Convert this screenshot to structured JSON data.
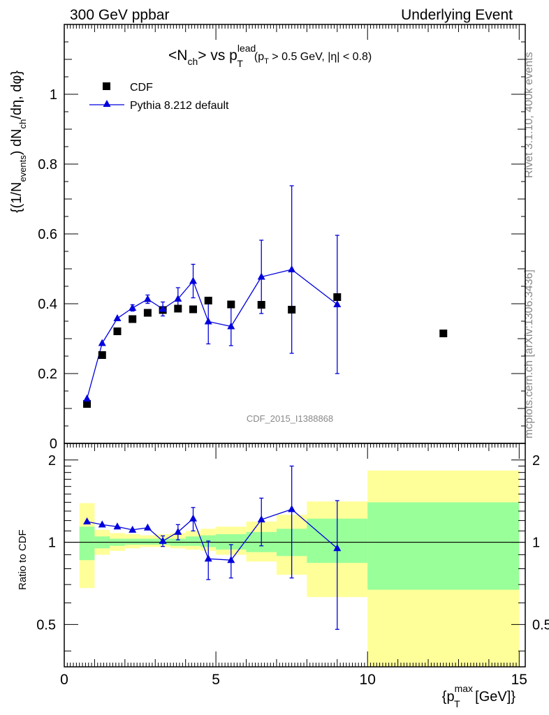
{
  "header": {
    "left": "300 GeV ppbar",
    "right": "Underlying Event"
  },
  "side_labels": {
    "rivet": "Rivet 3.1.10,  400k events",
    "mcplots": "mcplots.cern.ch [arXiv:1306.3436]"
  },
  "watermark": "CDF_2015_I1388868",
  "chart_data": [
    {
      "type": "scatter",
      "title": {
        "main": "<N",
        "main_sub": "ch",
        "mid": "> vs p",
        "mid_sup": "lead",
        "mid_sub": "T",
        "cut_p": "(p",
        "cut_sub": "T",
        "cut_rest": " > 0.5 GeV, |",
        "cut_eta": "η",
        "cut_end": "| < 0.8)"
      },
      "ylabel": {
        "a": "{(1/N",
        "a_sub": "events",
        "b": ") dN",
        "b_sub": "ch",
        "c": "/dη, dφ}"
      },
      "xlim": [
        0,
        15.2
      ],
      "ylim": [
        0,
        1.2
      ],
      "yticks": [
        0,
        0.2,
        0.4,
        0.6,
        0.8,
        1
      ],
      "ytick_labels": [
        "0",
        "0.2",
        "0.4",
        "0.6",
        "0.8",
        "1"
      ],
      "legend": {
        "position": "top-left",
        "entries": [
          "CDF",
          "Pythia 8.212 default"
        ]
      },
      "series": [
        {
          "name": "CDF",
          "color": "#000000",
          "marker": "square",
          "x": [
            0.75,
            1.25,
            1.75,
            2.25,
            2.75,
            3.25,
            3.75,
            4.25,
            4.75,
            5.5,
            6.5,
            7.5,
            9.0,
            12.5
          ],
          "y": [
            0.113,
            0.253,
            0.321,
            0.356,
            0.374,
            0.382,
            0.386,
            0.384,
            0.409,
            0.398,
            0.397,
            0.383,
            0.419,
            0.315
          ]
        },
        {
          "name": "Pythia 8.212 default",
          "color": "#0000dd",
          "marker": "triangle",
          "x": [
            0.75,
            1.25,
            1.75,
            2.25,
            2.75,
            3.25,
            3.75,
            4.25,
            4.75,
            5.5,
            6.5,
            7.5,
            9.0
          ],
          "y": [
            0.128,
            0.287,
            0.358,
            0.388,
            0.413,
            0.385,
            0.414,
            0.465,
            0.349,
            0.335,
            0.477,
            0.498,
            0.398
          ],
          "yerr": [
            0.004,
            0.006,
            0.008,
            0.009,
            0.012,
            0.02,
            0.032,
            0.048,
            0.064,
            0.055,
            0.105,
            0.24,
            0.198
          ]
        }
      ]
    },
    {
      "type": "scatter",
      "ylabel": "Ratio to CDF",
      "xlabel": {
        "a": "{p",
        "sup": "max",
        "sub": "T",
        "b": " [GeV]}"
      },
      "xlim": [
        0,
        15.2
      ],
      "ylim": [
        0.35,
        2.3
      ],
      "yscale": "log",
      "xticks": [
        0,
        5,
        10,
        15
      ],
      "xtick_labels": [
        "0",
        "5",
        "10",
        "15"
      ],
      "yticks": [
        0.5,
        1,
        2
      ],
      "ytick_labels": [
        "0.5",
        "1",
        "2"
      ],
      "reference_line": 1,
      "bands": {
        "x_edges": [
          0.5,
          1.0,
          1.5,
          2.0,
          2.5,
          3.0,
          3.5,
          4.0,
          4.5,
          5.0,
          6.0,
          7.0,
          8.0,
          10.0,
          15.0
        ],
        "outer_color": "#ffff99",
        "inner_color": "#99ff99",
        "outer_low": [
          0.68,
          0.9,
          0.93,
          0.95,
          0.96,
          0.96,
          0.95,
          0.94,
          0.93,
          0.9,
          0.85,
          0.76,
          0.63,
          0.34
        ],
        "outer_high": [
          1.39,
          1.11,
          1.08,
          1.07,
          1.06,
          1.07,
          1.08,
          1.1,
          1.12,
          1.14,
          1.19,
          1.26,
          1.41,
          1.83
        ],
        "inner_low": [
          0.86,
          0.95,
          0.97,
          0.98,
          0.98,
          0.98,
          0.97,
          0.97,
          0.96,
          0.94,
          0.92,
          0.89,
          0.84,
          0.67
        ],
        "inner_high": [
          1.14,
          1.05,
          1.03,
          1.03,
          1.03,
          1.03,
          1.03,
          1.05,
          1.06,
          1.07,
          1.09,
          1.12,
          1.22,
          1.4
        ]
      },
      "series": [
        {
          "name": "Pythia 8.212 default",
          "color": "#0000dd",
          "marker": "triangle",
          "x": [
            0.75,
            1.25,
            1.75,
            2.25,
            2.75,
            3.25,
            3.75,
            4.25,
            4.75,
            5.5,
            6.5,
            7.5,
            9.0
          ],
          "y": [
            1.19,
            1.16,
            1.14,
            1.11,
            1.13,
            1.01,
            1.09,
            1.22,
            0.87,
            0.86,
            1.21,
            1.32,
            0.95
          ],
          "yerr": [
            0.012,
            0.015,
            0.018,
            0.02,
            0.025,
            0.045,
            0.07,
            0.12,
            0.14,
            0.12,
            0.24,
            0.58,
            0.47
          ]
        }
      ]
    }
  ]
}
